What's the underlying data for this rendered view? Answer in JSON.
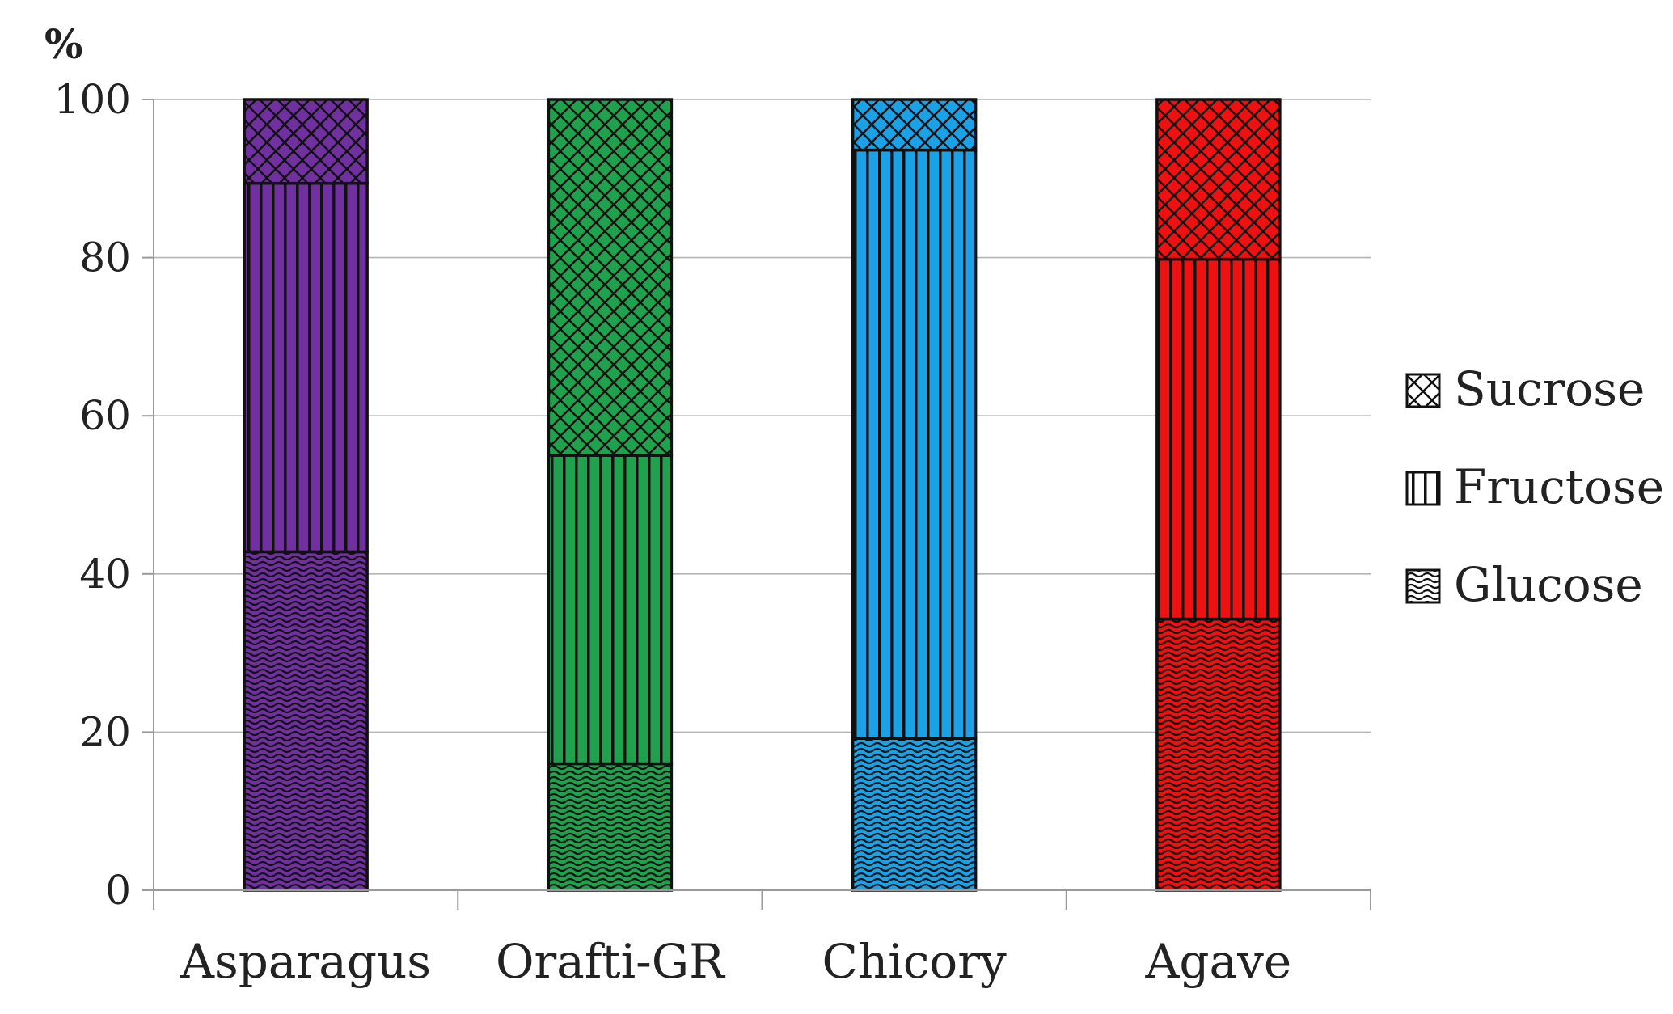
{
  "chart_data": {
    "type": "bar",
    "stacked": true,
    "title": "",
    "xlabel": "",
    "ylabel": "%",
    "ylim": [
      0,
      100
    ],
    "yticks": [
      0,
      20,
      40,
      60,
      80,
      100
    ],
    "grid": true,
    "legend_position": "right",
    "categories": [
      "Asparagus",
      "Orafti-GR",
      "Chicory",
      "Agave"
    ],
    "bar_colors": [
      "#7030A0",
      "#1FA14E",
      "#1BA1E6",
      "#EE1111"
    ],
    "series": [
      {
        "name": "Glucose",
        "pattern": "wave",
        "values": [
          42.8,
          16.0,
          19.2,
          34.3
        ]
      },
      {
        "name": "Fructose",
        "pattern": "vertical-lines",
        "values": [
          46.6,
          39.0,
          74.4,
          45.5
        ]
      },
      {
        "name": "Sucrose",
        "pattern": "crosshatch",
        "values": [
          10.6,
          45.0,
          6.4,
          20.2
        ]
      }
    ],
    "legend": [
      "Sucrose",
      "Fructose",
      "Glucose"
    ]
  }
}
